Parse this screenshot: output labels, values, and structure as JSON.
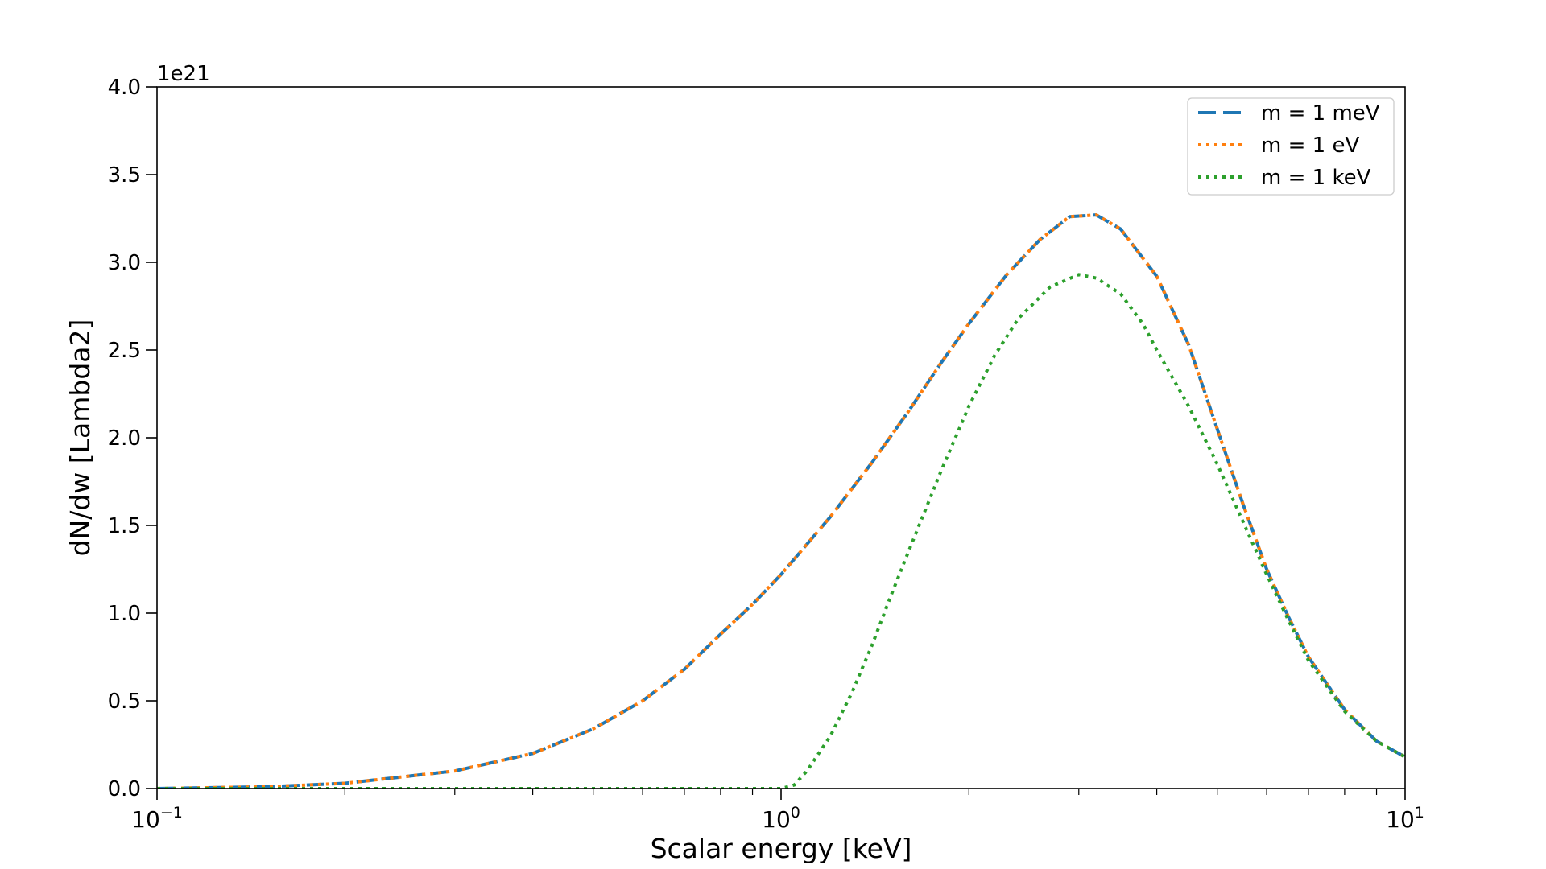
{
  "chart_data": {
    "type": "line",
    "xlabel": "Scalar energy [keV]",
    "ylabel": "dN/dw [Lambda2]",
    "y_offset_text": "1e21",
    "x_scale": "log",
    "xlim": [
      0.1,
      10
    ],
    "ylim": [
      0,
      4.0
    ],
    "x_ticks": [
      {
        "value": 0.1,
        "base": "10",
        "exp": "−1"
      },
      {
        "value": 1,
        "base": "10",
        "exp": "0"
      },
      {
        "value": 10,
        "base": "10",
        "exp": "1"
      }
    ],
    "y_ticks": [
      {
        "value": 0.0,
        "label": "0.0"
      },
      {
        "value": 0.5,
        "label": "0.5"
      },
      {
        "value": 1.0,
        "label": "1.0"
      },
      {
        "value": 1.5,
        "label": "1.5"
      },
      {
        "value": 2.0,
        "label": "2.0"
      },
      {
        "value": 2.5,
        "label": "2.5"
      },
      {
        "value": 3.0,
        "label": "3.0"
      },
      {
        "value": 3.5,
        "label": "3.5"
      },
      {
        "value": 4.0,
        "label": "4.0"
      }
    ],
    "grid": false,
    "legend_position": "top-right",
    "series": [
      {
        "name": "m = 1 meV",
        "color": "#1f77b4",
        "dash": "dashed",
        "x": [
          0.1,
          0.15,
          0.2,
          0.3,
          0.4,
          0.5,
          0.6,
          0.7,
          0.8,
          0.9,
          1.0,
          1.2,
          1.4,
          1.6,
          1.8,
          2.0,
          2.3,
          2.6,
          2.9,
          3.2,
          3.5,
          4.0,
          4.5,
          5.0,
          5.5,
          6.0,
          6.5,
          7.0,
          8.0,
          9.0,
          10.0
        ],
        "y": [
          0.0,
          0.01,
          0.03,
          0.1,
          0.2,
          0.34,
          0.5,
          0.68,
          0.88,
          1.05,
          1.22,
          1.55,
          1.86,
          2.15,
          2.42,
          2.65,
          2.93,
          3.13,
          3.26,
          3.27,
          3.19,
          2.92,
          2.53,
          2.05,
          1.62,
          1.25,
          0.98,
          0.75,
          0.45,
          0.27,
          0.18
        ]
      },
      {
        "name": "m = 1 eV",
        "color": "#ff7f0e",
        "dash": "dotted",
        "x": [
          0.1,
          0.15,
          0.2,
          0.3,
          0.4,
          0.5,
          0.6,
          0.7,
          0.8,
          0.9,
          1.0,
          1.2,
          1.4,
          1.6,
          1.8,
          2.0,
          2.3,
          2.6,
          2.9,
          3.2,
          3.5,
          4.0,
          4.5,
          5.0,
          5.5,
          6.0,
          6.5,
          7.0,
          8.0,
          9.0,
          10.0
        ],
        "y": [
          0.0,
          0.01,
          0.03,
          0.1,
          0.2,
          0.34,
          0.5,
          0.68,
          0.88,
          1.05,
          1.22,
          1.55,
          1.86,
          2.15,
          2.42,
          2.65,
          2.93,
          3.13,
          3.26,
          3.27,
          3.19,
          2.92,
          2.53,
          2.05,
          1.62,
          1.25,
          0.98,
          0.75,
          0.45,
          0.27,
          0.18
        ]
      },
      {
        "name": "m = 1 keV",
        "color": "#2ca02c",
        "dash": "dotted",
        "x": [
          0.1,
          0.5,
          1.0,
          1.05,
          1.1,
          1.2,
          1.3,
          1.4,
          1.5,
          1.6,
          1.8,
          2.0,
          2.2,
          2.4,
          2.7,
          3.0,
          3.2,
          3.5,
          3.8,
          4.0,
          4.5,
          5.0,
          5.5,
          6.0,
          6.5,
          7.0,
          8.0,
          9.0,
          10.0
        ],
        "y": [
          0.0,
          0.0,
          0.0,
          0.02,
          0.1,
          0.3,
          0.55,
          0.82,
          1.1,
          1.35,
          1.8,
          2.18,
          2.47,
          2.68,
          2.86,
          2.93,
          2.91,
          2.82,
          2.65,
          2.5,
          2.18,
          1.85,
          1.52,
          1.22,
          0.96,
          0.73,
          0.44,
          0.27,
          0.18
        ]
      }
    ]
  }
}
